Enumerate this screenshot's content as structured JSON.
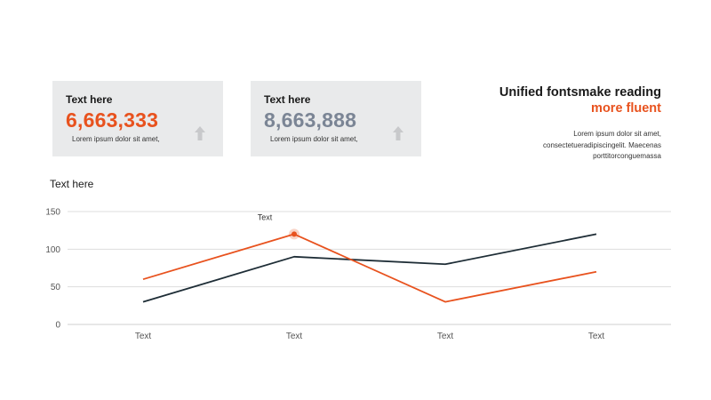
{
  "colors": {
    "accent": "#e8521e",
    "dark": "#1e2d36",
    "slate": "#7b8595",
    "card_bg": "#e9eaeb",
    "arrow": "#c8c9cb",
    "grid": "#dddddd"
  },
  "cards": [
    {
      "title": "Text here",
      "value": "6,663,333",
      "desc": "Lorem ipsum dolor sit amet,",
      "value_color": "#e8521e",
      "icon": "arrow-up-icon"
    },
    {
      "title": "Text here",
      "value": "8,663,888",
      "desc": "Lorem ipsum dolor sit amet,",
      "value_color": "#7b8595",
      "icon": "arrow-up-icon"
    }
  ],
  "heading": {
    "line1": "Unified fontsmake reading",
    "line2": "more fluent"
  },
  "body_text": {
    "line1": "Lorem ipsum dolor sit amet,",
    "line2": "consectetueradipiscingelit.  Maecenas",
    "line3": "porttitorconguemassa"
  },
  "chart_data": {
    "type": "line",
    "title": "Text here",
    "categories": [
      "Text",
      "Text",
      "Text",
      "Text"
    ],
    "series": [
      {
        "values": [
          30,
          90,
          80,
          120
        ],
        "color": "#1e2d36"
      },
      {
        "values": [
          60,
          120,
          30,
          70
        ],
        "color": "#e8521e"
      }
    ],
    "ylim": [
      0,
      150
    ],
    "yticks": [
      0,
      50,
      100,
      150
    ],
    "grid": true,
    "annotation": {
      "text": "Text",
      "series": 1,
      "index": 1
    }
  }
}
